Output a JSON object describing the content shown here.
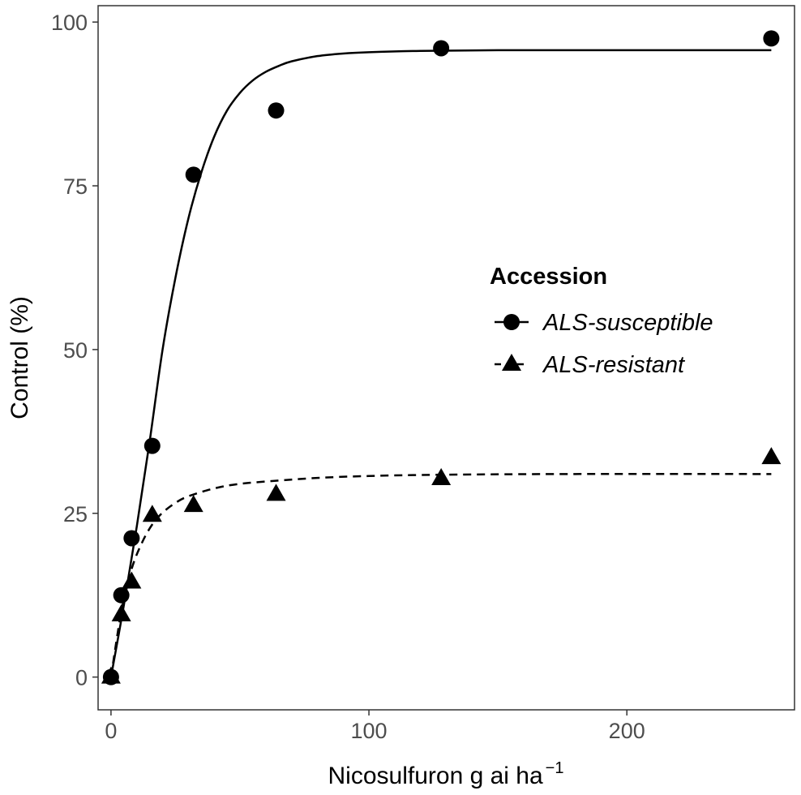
{
  "chart_data": {
    "type": "scatter",
    "xlabel": "Nicosulfuron g ai ha",
    "xlabel_superscript": "−1",
    "ylabel": "Control (%)",
    "xlim": [
      -5,
      265
    ],
    "ylim": [
      -5,
      102.5
    ],
    "x_ticks": [
      0,
      100,
      200
    ],
    "x_tick_labels": [
      "0",
      "100",
      "200"
    ],
    "y_ticks": [
      0,
      25,
      50,
      75,
      100
    ],
    "y_tick_labels": [
      "0",
      "25",
      "50",
      "75",
      "100"
    ],
    "grid": false,
    "legend": {
      "title": "Accession",
      "position": "right"
    },
    "series": [
      {
        "name": "ALS-susceptible",
        "marker": "circle",
        "line": "solid",
        "color": "#000000",
        "points": [
          [
            0,
            0
          ],
          [
            4,
            12.5
          ],
          [
            8,
            21.2
          ],
          [
            16,
            35.3
          ],
          [
            32,
            76.7
          ],
          [
            64,
            86.5
          ],
          [
            128,
            96
          ],
          [
            256,
            97.5
          ]
        ],
        "fit": [
          [
            0,
            0
          ],
          [
            5,
            11
          ],
          [
            10,
            23
          ],
          [
            15,
            36
          ],
          [
            20,
            50
          ],
          [
            25,
            61
          ],
          [
            30,
            70
          ],
          [
            35,
            77
          ],
          [
            40,
            82.5
          ],
          [
            45,
            86.5
          ],
          [
            50,
            89.2
          ],
          [
            55,
            91.1
          ],
          [
            60,
            92.4
          ],
          [
            65,
            93.3
          ],
          [
            70,
            94
          ],
          [
            80,
            94.8
          ],
          [
            90,
            95.2
          ],
          [
            100,
            95.4
          ],
          [
            120,
            95.6
          ],
          [
            150,
            95.7
          ],
          [
            200,
            95.7
          ],
          [
            256,
            95.7
          ]
        ]
      },
      {
        "name": "ALS-resistant",
        "marker": "triangle",
        "line": "dashed",
        "color": "#000000",
        "points": [
          [
            0,
            0
          ],
          [
            4,
            9.5
          ],
          [
            8,
            14.5
          ],
          [
            16,
            24.7
          ],
          [
            32,
            26.2
          ],
          [
            64,
            27.9
          ],
          [
            128,
            30.3
          ],
          [
            256,
            33.5
          ]
        ],
        "fit": [
          [
            0,
            0
          ],
          [
            4,
            10
          ],
          [
            8,
            16.5
          ],
          [
            12,
            20.5
          ],
          [
            16,
            23.3
          ],
          [
            20,
            25.1
          ],
          [
            25,
            26.6
          ],
          [
            30,
            27.6
          ],
          [
            40,
            28.8
          ],
          [
            50,
            29.5
          ],
          [
            65,
            30
          ],
          [
            80,
            30.4
          ],
          [
            100,
            30.7
          ],
          [
            130,
            30.9
          ],
          [
            180,
            31
          ],
          [
            256,
            31
          ]
        ]
      }
    ]
  }
}
